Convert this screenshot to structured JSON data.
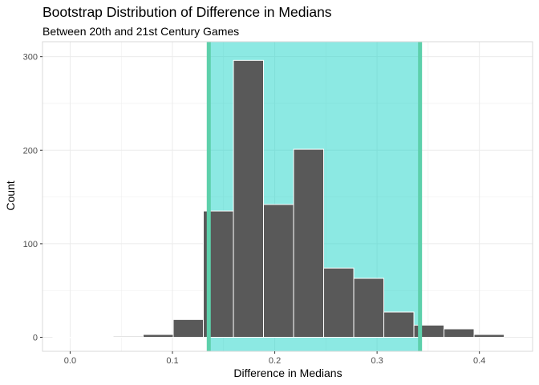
{
  "chart_data": {
    "type": "bar",
    "title": "Bootstrap Distribution of Difference in Medians",
    "subtitle": "Between 20th and 21st Century Games",
    "xlabel": "Difference in Medians",
    "ylabel": "Count",
    "xlim": [
      -0.027,
      0.452
    ],
    "ylim": [
      -15,
      316
    ],
    "xticks": [
      0.0,
      0.1,
      0.2,
      0.3,
      0.4
    ],
    "xtick_labels": [
      "0.0",
      "0.1",
      "0.2",
      "0.3",
      "0.4"
    ],
    "yticks": [
      0,
      100,
      200,
      300
    ],
    "ytick_labels": [
      "0",
      "100",
      "200",
      "300"
    ],
    "grid": true,
    "bin_width": 0.0294,
    "bins": [
      {
        "x0": -0.0168,
        "x1": 0.0126,
        "count": 0
      },
      {
        "x0": 0.0126,
        "x1": 0.042,
        "count": 0
      },
      {
        "x0": 0.042,
        "x1": 0.0714,
        "count": 1
      },
      {
        "x0": 0.0714,
        "x1": 0.1008,
        "count": 3
      },
      {
        "x0": 0.1008,
        "x1": 0.1302,
        "count": 19
      },
      {
        "x0": 0.1302,
        "x1": 0.1596,
        "count": 135
      },
      {
        "x0": 0.1596,
        "x1": 0.189,
        "count": 296
      },
      {
        "x0": 0.189,
        "x1": 0.2184,
        "count": 142
      },
      {
        "x0": 0.2184,
        "x1": 0.2478,
        "count": 201
      },
      {
        "x0": 0.2478,
        "x1": 0.2772,
        "count": 74
      },
      {
        "x0": 0.2772,
        "x1": 0.3066,
        "count": 63
      },
      {
        "x0": 0.3066,
        "x1": 0.336,
        "count": 27
      },
      {
        "x0": 0.336,
        "x1": 0.3654,
        "count": 13
      },
      {
        "x0": 0.3654,
        "x1": 0.3948,
        "count": 9
      },
      {
        "x0": 0.3948,
        "x1": 0.4242,
        "count": 3
      }
    ],
    "confidence_interval": {
      "lower": 0.1355,
      "upper": 0.342
    },
    "colors": {
      "bar": "#595959",
      "bar_outline": "#ffffff",
      "shade": "#1ad3c8",
      "shade_opacity": 0.5,
      "ci_line": "#5dd0ab",
      "grid": "#ebebeb",
      "panel_border": "#d9d9d9"
    }
  }
}
